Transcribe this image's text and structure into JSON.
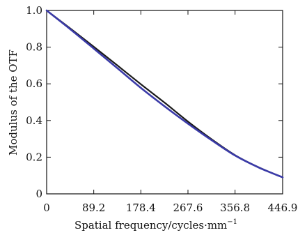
{
  "chart_data": {
    "type": "line",
    "title": "",
    "xlabel": "Spatial frequency/cycles·mm",
    "xlabel_superscript": "−1",
    "ylabel": "Modulus of the OTF",
    "xlim": [
      0,
      446.9
    ],
    "ylim": [
      0,
      1.0
    ],
    "x_ticks": [
      0,
      89.2,
      178.4,
      267.6,
      356.8,
      446.9
    ],
    "x_tick_labels": [
      "0",
      "89.2",
      "178.4",
      "267.6",
      "356.8",
      "446.9"
    ],
    "y_ticks": [
      0,
      0.2,
      0.4,
      0.6,
      0.8,
      1.0
    ],
    "y_tick_labels": [
      "0",
      "0.2",
      "0.4",
      "0.6",
      "0.8",
      "1.0"
    ],
    "grid": false,
    "legend": "none",
    "series": [
      {
        "color": "#1a1a1a",
        "x": [
          0,
          44.7,
          89.4,
          134.1,
          178.8,
          223.5,
          268.1,
          312.8,
          357.5,
          402.2,
          446.9
        ],
        "y": [
          1.0,
          0.902,
          0.802,
          0.7,
          0.597,
          0.497,
          0.393,
          0.297,
          0.21,
          0.144,
          0.09
        ]
      },
      {
        "color": "#3a3aa8",
        "x": [
          0,
          44.7,
          89.4,
          134.1,
          178.8,
          223.5,
          268.1,
          312.8,
          357.5,
          402.2,
          446.9
        ],
        "y": [
          1.0,
          0.898,
          0.792,
          0.685,
          0.577,
          0.477,
          0.382,
          0.292,
          0.208,
          0.143,
          0.09
        ]
      }
    ]
  }
}
